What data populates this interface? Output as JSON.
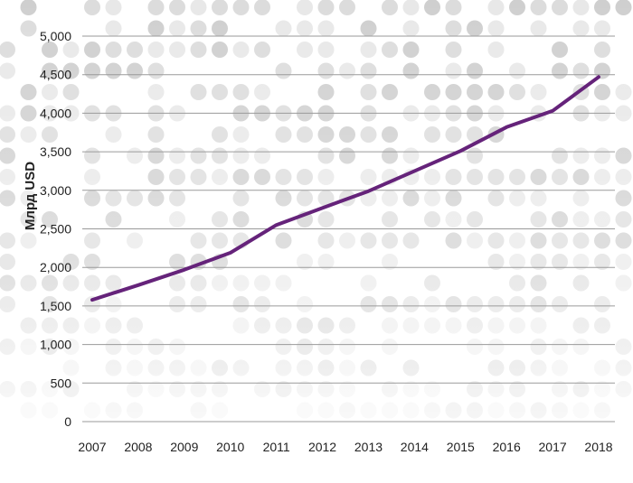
{
  "chart_data": {
    "type": "line",
    "title": "",
    "xlabel": "",
    "ylabel": "Млрд USD",
    "x": [
      "2007",
      "2008",
      "2009",
      "2010",
      "2011",
      "2012",
      "2013",
      "2014",
      "2015",
      "2016",
      "2017",
      "2018"
    ],
    "series": [
      {
        "values": [
          1580,
          1770,
          1970,
          2190,
          2550,
          2770,
          2990,
          3250,
          3510,
          3820,
          4030,
          4470
        ]
      }
    ],
    "ylim": [
      0,
      5000
    ],
    "yticks": [
      0,
      500,
      1000,
      1500,
      2000,
      2500,
      3000,
      3500,
      4000,
      4500,
      5000
    ],
    "ytick_labels": [
      "0",
      "500",
      "1,000",
      "1,500",
      "2,000",
      "2,500",
      "3,000",
      "3,500",
      "4,000",
      "4,500",
      "5,000"
    ],
    "grid": "horizontal",
    "legend": "none",
    "colors": {
      "line": "#65237a",
      "grid": "#9a9a9a",
      "text": "#222222",
      "dots": "#d9d9d9"
    }
  }
}
